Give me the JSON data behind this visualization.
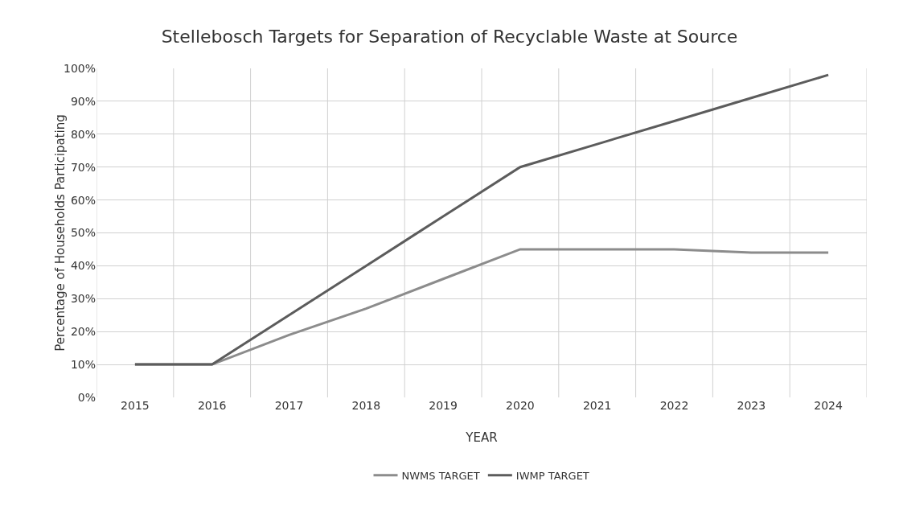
{
  "chart_data": {
    "type": "line",
    "title": "Stellebosch Targets for Separation of Recyclable Waste at Source",
    "xlabel": "YEAR",
    "ylabel": "Percentage of Households Participating",
    "categories": [
      "2015",
      "2016",
      "2017",
      "2018",
      "2019",
      "2020",
      "2021",
      "2022",
      "2023",
      "2024"
    ],
    "series": [
      {
        "name": "NWMS TARGET",
        "color": "#8c8c8c",
        "values": [
          10,
          10,
          19,
          27,
          36,
          45,
          45,
          45,
          44,
          44
        ]
      },
      {
        "name": "IWMP TARGET",
        "color": "#5c5c5c",
        "values": [
          10,
          10,
          25,
          40,
          55,
          70,
          77,
          84,
          91,
          98
        ]
      }
    ],
    "ylim": [
      0,
      100
    ],
    "yticks": [
      {
        "value": 0,
        "label": "0%"
      },
      {
        "value": 10,
        "label": "10%"
      },
      {
        "value": 20,
        "label": "20%"
      },
      {
        "value": 30,
        "label": "30%"
      },
      {
        "value": 40,
        "label": "40%"
      },
      {
        "value": 50,
        "label": "50%"
      },
      {
        "value": 60,
        "label": "60%"
      },
      {
        "value": 70,
        "label": "70%"
      },
      {
        "value": 80,
        "label": "80%"
      },
      {
        "value": 90,
        "label": "90%"
      },
      {
        "value": 100,
        "label": "100%"
      }
    ],
    "grid": true,
    "legend": "bottom",
    "marker": "none",
    "line_style": "solid"
  }
}
